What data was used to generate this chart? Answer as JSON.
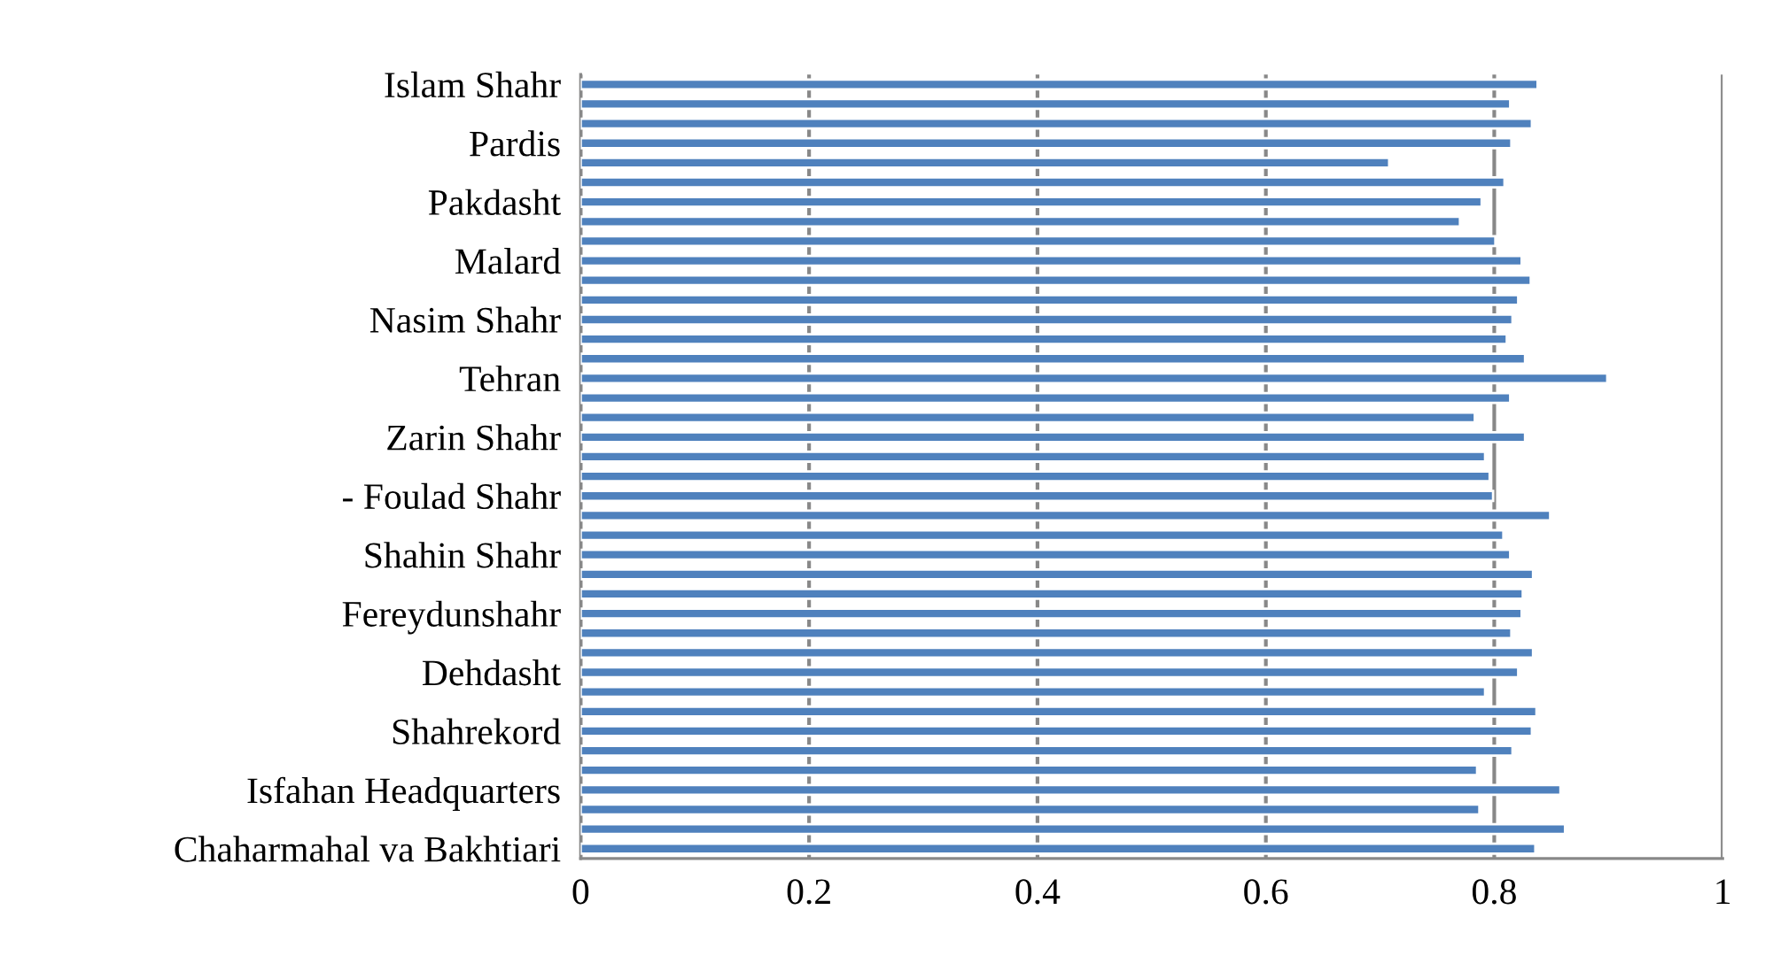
{
  "chart_data": {
    "type": "bar",
    "orientation": "horizontal",
    "categories": [
      "Islam Shahr",
      null,
      null,
      "Pardis",
      null,
      null,
      "Pakdasht",
      null,
      null,
      "Malard",
      null,
      null,
      "Nasim Shahr",
      null,
      null,
      "Tehran",
      null,
      null,
      "Zarin Shahr",
      null,
      null,
      "- Foulad Shahr",
      null,
      null,
      "Shahin Shahr",
      null,
      null,
      "Fereydunshahr",
      null,
      null,
      "Dehdasht",
      null,
      null,
      "Shahrekord",
      null,
      null,
      "Isfahan Headquarters",
      null,
      null,
      "Chaharmahal va Bakhtiari"
    ],
    "values": [
      0.838,
      0.814,
      0.833,
      0.815,
      0.708,
      0.809,
      0.789,
      0.77,
      0.801,
      0.824,
      0.832,
      0.821,
      0.816,
      0.811,
      0.827,
      0.899,
      0.814,
      0.783,
      0.827,
      0.792,
      0.796,
      0.799,
      0.849,
      0.808,
      0.814,
      0.834,
      0.825,
      0.824,
      0.815,
      0.834,
      0.821,
      0.792,
      0.837,
      0.833,
      0.816,
      0.785,
      0.858,
      0.787,
      0.862,
      0.836
    ],
    "color": "#4f81bd",
    "xlim": [
      0,
      1
    ],
    "xticks": [
      0,
      0.2,
      0.4,
      0.6,
      0.8,
      1
    ],
    "grid": "x",
    "legend": false
  }
}
